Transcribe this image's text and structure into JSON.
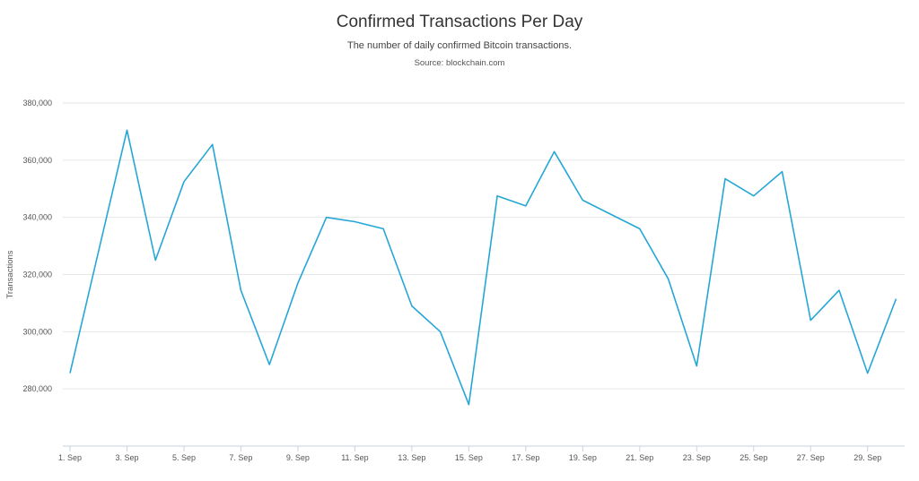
{
  "chart_data": {
    "type": "line",
    "title": "Confirmed Transactions Per Day",
    "subtitle": "The number of daily confirmed Bitcoin transactions.",
    "source": "Source: blockchain.com",
    "ylabel": "Transactions",
    "xlabel": "",
    "ylim": [
      260000,
      380000
    ],
    "yticks": [
      {
        "value": 280000,
        "label": "280,000"
      },
      {
        "value": 300000,
        "label": "300,000"
      },
      {
        "value": 320000,
        "label": "320,000"
      },
      {
        "value": 340000,
        "label": "340,000"
      },
      {
        "value": 360000,
        "label": "360,000"
      },
      {
        "value": 380000,
        "label": "380,000"
      }
    ],
    "xlim": [
      1,
      30.3
    ],
    "xticks": [
      {
        "value": 1,
        "label": "1. Sep"
      },
      {
        "value": 3,
        "label": "3. Sep"
      },
      {
        "value": 5,
        "label": "5. Sep"
      },
      {
        "value": 7,
        "label": "7. Sep"
      },
      {
        "value": 9,
        "label": "9. Sep"
      },
      {
        "value": 11,
        "label": "11. Sep"
      },
      {
        "value": 13,
        "label": "13. Sep"
      },
      {
        "value": 15,
        "label": "15. Sep"
      },
      {
        "value": 17,
        "label": "17. Sep"
      },
      {
        "value": 19,
        "label": "19. Sep"
      },
      {
        "value": 21,
        "label": "21. Sep"
      },
      {
        "value": 23,
        "label": "23. Sep"
      },
      {
        "value": 25,
        "label": "25. Sep"
      },
      {
        "value": 27,
        "label": "27. Sep"
      },
      {
        "value": 29,
        "label": "29. Sep"
      }
    ],
    "grid": true,
    "line_color": "#26a6d6",
    "series": [
      {
        "name": "",
        "x": [
          1,
          2,
          3,
          4,
          5,
          6,
          7,
          8,
          9,
          10,
          11,
          12,
          13,
          14,
          15,
          16,
          17,
          18,
          19,
          20,
          21,
          22,
          23,
          24,
          25,
          26,
          27,
          28,
          29,
          30
        ],
        "values": [
          285500,
          328000,
          370500,
          325000,
          352500,
          365500,
          314500,
          288500,
          317000,
          340000,
          338500,
          336000,
          309000,
          300000,
          274500,
          347500,
          344000,
          363000,
          346000,
          341000,
          336000,
          318500,
          288000,
          353500,
          347500,
          356000,
          304000,
          314500,
          285500,
          311500
        ]
      }
    ]
  }
}
